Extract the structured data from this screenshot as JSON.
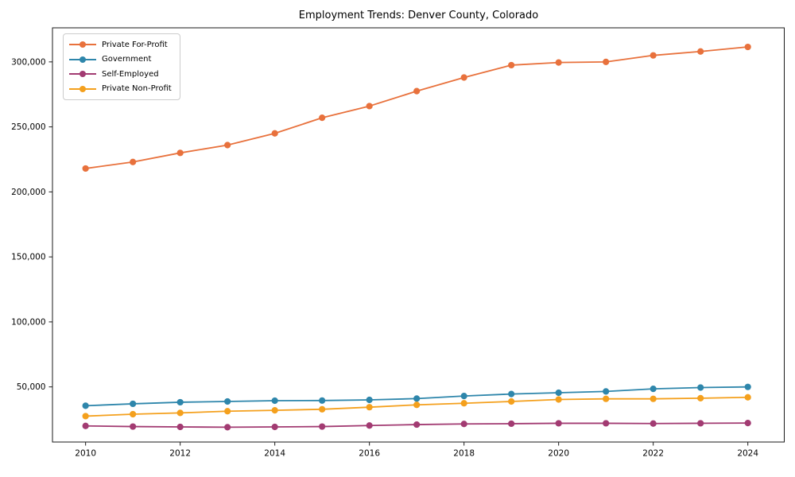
{
  "chart_data": {
    "type": "line",
    "title": "Employment Trends: Denver County, Colorado",
    "xlabel": "",
    "ylabel": "",
    "x": [
      2010,
      2011,
      2012,
      2013,
      2014,
      2015,
      2016,
      2017,
      2018,
      2019,
      2020,
      2021,
      2022,
      2023,
      2024
    ],
    "series": [
      {
        "name": "Private For-Profit",
        "color": "#E8713C",
        "values": [
          218000,
          223000,
          230000,
          236000,
          245000,
          257000,
          266000,
          277500,
          288000,
          297500,
          299500,
          300000,
          305000,
          308000,
          311500
        ]
      },
      {
        "name": "Government",
        "color": "#2E86AB",
        "values": [
          35500,
          37000,
          38200,
          38800,
          39400,
          39500,
          40000,
          41000,
          43000,
          44500,
          45500,
          46500,
          48500,
          49500,
          50000
        ]
      },
      {
        "name": "Self-Employed",
        "color": "#A23B72",
        "values": [
          20000,
          19500,
          19200,
          19000,
          19200,
          19500,
          20300,
          21000,
          21500,
          21700,
          22000,
          22000,
          21800,
          22000,
          22200
        ]
      },
      {
        "name": "Private Non-Profit",
        "color": "#F4A01D",
        "values": [
          27500,
          29000,
          30000,
          31300,
          32000,
          32800,
          34400,
          36200,
          37400,
          38800,
          40300,
          40800,
          40800,
          41300,
          42000
        ]
      }
    ],
    "x_ticks": [
      2010,
      2012,
      2014,
      2016,
      2018,
      2020,
      2022,
      2024
    ],
    "x_tick_labels": [
      "2010",
      "2012",
      "2014",
      "2016",
      "2018",
      "2020",
      "2022",
      "2024"
    ],
    "y_ticks": [
      50000,
      100000,
      150000,
      200000,
      250000,
      300000
    ],
    "y_tick_labels": [
      "50,000",
      "100,000",
      "150,000",
      "200,000",
      "250,000",
      "300,000"
    ],
    "xlim": [
      2009.3,
      2024.77
    ],
    "ylim": [
      7600,
      326200
    ],
    "grid": false,
    "legend_position": "upper-left",
    "marker": "circle",
    "frame_color": "#1a1a1a"
  }
}
